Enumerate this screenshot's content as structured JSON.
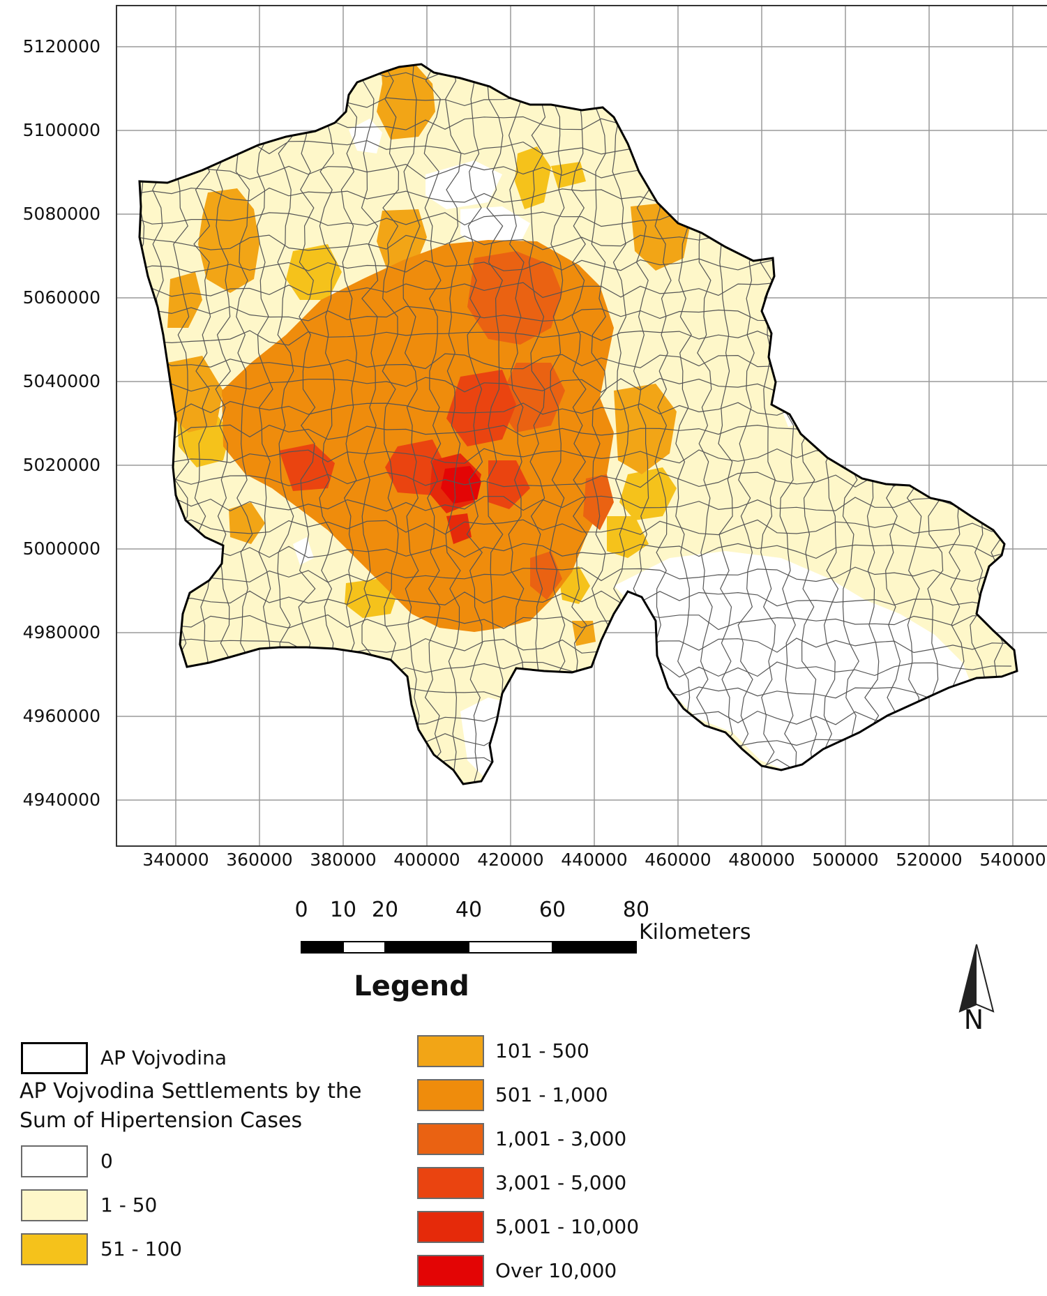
{
  "map": {
    "y_ticks": [
      "5120000",
      "5100000",
      "5080000",
      "5060000",
      "5040000",
      "5020000",
      "5000000",
      "4980000",
      "4960000",
      "4940000"
    ],
    "x_ticks": [
      "340000",
      "360000",
      "380000",
      "400000",
      "420000",
      "440000",
      "460000",
      "480000",
      "500000",
      "520000",
      "540000"
    ],
    "gridline_color": "#9a9a9a",
    "boundary_color": "#000000",
    "settlement_outline_color": "#555555"
  },
  "scale_bar": {
    "labels": [
      "0",
      "10",
      "20",
      "40",
      "60",
      "80"
    ],
    "unit": "Kilometers"
  },
  "north_arrow": {
    "letter": "N",
    "icon": "north-arrow-icon"
  },
  "legend": {
    "title": "Legend",
    "boundary_label": "AP Vojvodina",
    "heading": "AP Vojvodina Settlements by the Sum of Hipertension Cases",
    "classes": [
      {
        "label": "0",
        "color": "#ffffff"
      },
      {
        "label": "1 - 50",
        "color": "#fef7c9"
      },
      {
        "label": "51 - 100",
        "color": "#f5c21b"
      },
      {
        "label": "101 - 500",
        "color": "#f2a516"
      },
      {
        "label": "501 - 1,000",
        "color": "#ef8c0c"
      },
      {
        "label": "1,001 - 3,000",
        "color": "#ea6212"
      },
      {
        "label": "3,001 - 5,000",
        "color": "#ea4410"
      },
      {
        "label": "5,001 - 10,000",
        "color": "#e52a0a"
      },
      {
        "label": "Over 10,000",
        "color": "#e30505"
      }
    ]
  }
}
